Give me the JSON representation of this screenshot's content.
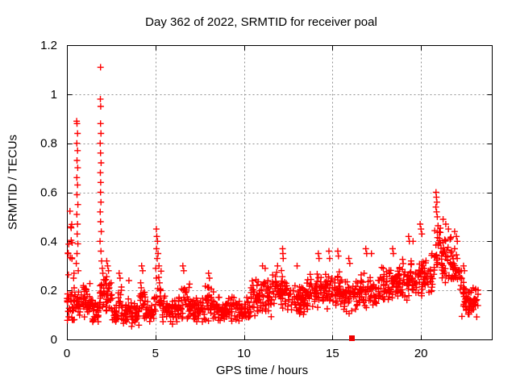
{
  "chart_data": {
    "type": "scatter",
    "title": "Day 362 of 2022, SRMTID for receiver poal",
    "xlabel": "GPS time / hours",
    "ylabel": "SRMTID / TECUs",
    "xlim": [
      0,
      24
    ],
    "ylim": [
      0,
      1.2
    ],
    "xticks": [
      0,
      5,
      10,
      15,
      20
    ],
    "xtick_labels": [
      "0",
      "5",
      "10",
      "15",
      "20"
    ],
    "yticks": [
      0,
      0.2,
      0.4,
      0.6,
      0.8,
      1,
      1.2
    ],
    "ytick_labels": [
      "0",
      "0.2",
      "0.4",
      "0.6",
      "0.8",
      "1",
      "1.2"
    ],
    "grid": "dashed at major ticks",
    "legend": "none",
    "colors": {
      "marker": "#ff0000",
      "flag_marker": "#ee0000",
      "frame": "#000000",
      "grid": "#909090",
      "text": "#000000",
      "background": "#ffffff"
    },
    "marker": "plus",
    "noise_seed": 1362,
    "series": [
      {
        "name": "SRMTID",
        "marker": "plus",
        "color": "#ff0000",
        "band_segments": [
          [
            0.0,
            0.3,
            0.14,
            0.07,
            22
          ],
          [
            0.05,
            0.3,
            0.38,
            0.17,
            14
          ],
          [
            0.3,
            0.8,
            0.15,
            0.08,
            30
          ],
          [
            0.8,
            1.4,
            0.16,
            0.08,
            40
          ],
          [
            1.4,
            1.78,
            0.11,
            0.05,
            26
          ],
          [
            1.82,
            2.05,
            0.2,
            0.09,
            14
          ],
          [
            2.05,
            2.55,
            0.18,
            0.09,
            34
          ],
          [
            2.55,
            2.9,
            0.11,
            0.05,
            24
          ],
          [
            2.9,
            3.15,
            0.15,
            0.08,
            16
          ],
          [
            3.15,
            3.45,
            0.1,
            0.05,
            20
          ],
          [
            3.45,
            3.65,
            0.14,
            0.07,
            12
          ],
          [
            3.65,
            4.1,
            0.1,
            0.05,
            28
          ],
          [
            4.1,
            4.45,
            0.16,
            0.09,
            20
          ],
          [
            4.45,
            4.92,
            0.11,
            0.05,
            28
          ],
          [
            4.92,
            5.35,
            0.19,
            0.1,
            22
          ],
          [
            5.35,
            6.3,
            0.12,
            0.06,
            55
          ],
          [
            6.3,
            6.95,
            0.16,
            0.08,
            40
          ],
          [
            6.95,
            7.8,
            0.12,
            0.06,
            50
          ],
          [
            7.8,
            8.35,
            0.15,
            0.08,
            32
          ],
          [
            8.35,
            10.35,
            0.12,
            0.06,
            115
          ],
          [
            10.35,
            11.55,
            0.17,
            0.08,
            75
          ],
          [
            11.55,
            12.45,
            0.2,
            0.09,
            58
          ],
          [
            12.45,
            13.6,
            0.17,
            0.08,
            72
          ],
          [
            13.6,
            15.45,
            0.2,
            0.09,
            112
          ],
          [
            15.45,
            16.55,
            0.18,
            0.08,
            66
          ],
          [
            16.55,
            17.55,
            0.2,
            0.09,
            62
          ],
          [
            17.55,
            18.75,
            0.22,
            0.09,
            72
          ],
          [
            18.75,
            19.85,
            0.24,
            0.1,
            66
          ],
          [
            19.85,
            20.75,
            0.26,
            0.1,
            56
          ],
          [
            20.75,
            21.15,
            0.37,
            0.12,
            26
          ],
          [
            21.15,
            21.7,
            0.32,
            0.11,
            40
          ],
          [
            21.7,
            22.3,
            0.28,
            0.1,
            40
          ],
          [
            22.3,
            22.65,
            0.17,
            0.08,
            24
          ],
          [
            22.65,
            23.25,
            0.16,
            0.07,
            42
          ]
        ],
        "peak_points": [
          [
            0.4,
            0.27
          ],
          [
            0.38,
            0.25
          ],
          [
            0.55,
            0.89
          ],
          [
            0.57,
            0.88
          ],
          [
            0.6,
            0.84
          ],
          [
            0.56,
            0.8
          ],
          [
            0.6,
            0.77
          ],
          [
            0.57,
            0.73
          ],
          [
            0.61,
            0.7
          ],
          [
            0.56,
            0.66
          ],
          [
            0.6,
            0.63
          ],
          [
            0.57,
            0.59
          ],
          [
            0.62,
            0.55
          ],
          [
            0.56,
            0.51
          ],
          [
            0.6,
            0.47
          ],
          [
            0.58,
            0.43
          ],
          [
            0.62,
            0.39
          ],
          [
            0.57,
            0.35
          ],
          [
            0.53,
            0.31
          ],
          [
            0.64,
            0.28
          ],
          [
            1.9,
            1.11
          ],
          [
            1.89,
            0.98
          ],
          [
            1.91,
            0.95
          ],
          [
            1.9,
            0.88
          ],
          [
            1.92,
            0.84
          ],
          [
            1.88,
            0.8
          ],
          [
            1.9,
            0.76
          ],
          [
            1.93,
            0.72
          ],
          [
            1.89,
            0.68
          ],
          [
            1.91,
            0.64
          ],
          [
            1.9,
            0.6
          ],
          [
            1.92,
            0.56
          ],
          [
            1.88,
            0.52
          ],
          [
            1.9,
            0.48
          ],
          [
            1.94,
            0.44
          ],
          [
            1.87,
            0.4
          ],
          [
            1.92,
            0.36
          ],
          [
            1.96,
            0.32
          ],
          [
            2.0,
            0.29
          ],
          [
            2.03,
            0.27
          ],
          [
            2.25,
            0.32
          ],
          [
            2.3,
            0.3
          ],
          [
            2.35,
            0.28
          ],
          [
            2.95,
            0.27
          ],
          [
            3.0,
            0.25
          ],
          [
            3.5,
            0.24
          ],
          [
            4.22,
            0.3
          ],
          [
            4.28,
            0.28
          ],
          [
            5.05,
            0.45
          ],
          [
            5.08,
            0.42
          ],
          [
            5.12,
            0.4
          ],
          [
            5.06,
            0.37
          ],
          [
            5.15,
            0.35
          ],
          [
            5.1,
            0.33
          ],
          [
            5.2,
            0.3
          ],
          [
            5.02,
            0.29
          ],
          [
            6.55,
            0.3
          ],
          [
            6.6,
            0.28
          ],
          [
            8.0,
            0.27
          ],
          [
            8.05,
            0.25
          ],
          [
            11.05,
            0.3
          ],
          [
            11.2,
            0.29
          ],
          [
            11.9,
            0.3
          ],
          [
            12.18,
            0.37
          ],
          [
            12.2,
            0.35
          ],
          [
            12.22,
            0.33
          ],
          [
            13.0,
            0.3
          ],
          [
            14.2,
            0.35
          ],
          [
            14.24,
            0.33
          ],
          [
            14.8,
            0.36
          ],
          [
            14.84,
            0.33
          ],
          [
            15.3,
            0.36
          ],
          [
            15.34,
            0.34
          ],
          [
            15.92,
            0.33
          ],
          [
            15.98,
            0.31
          ],
          [
            16.88,
            0.37
          ],
          [
            16.93,
            0.35
          ],
          [
            17.2,
            0.35
          ],
          [
            18.4,
            0.37
          ],
          [
            18.44,
            0.35
          ],
          [
            19.3,
            0.42
          ],
          [
            19.34,
            0.4
          ],
          [
            19.55,
            0.4
          ],
          [
            19.95,
            0.47
          ],
          [
            20.0,
            0.45
          ],
          [
            20.05,
            0.43
          ],
          [
            20.85,
            0.6
          ],
          [
            20.87,
            0.58
          ],
          [
            20.9,
            0.56
          ],
          [
            20.84,
            0.54
          ],
          [
            20.88,
            0.52
          ],
          [
            20.92,
            0.5
          ],
          [
            21.25,
            0.49
          ],
          [
            21.4,
            0.47
          ],
          [
            21.55,
            0.45
          ],
          [
            21.9,
            0.44
          ],
          [
            22.0,
            0.42
          ],
          [
            22.05,
            0.4
          ],
          [
            22.4,
            0.3
          ],
          [
            22.45,
            0.28
          ]
        ]
      },
      {
        "name": "flag",
        "marker": "filled-square",
        "color": "#ee0000",
        "points": [
          [
            16.1,
            0.005
          ]
        ]
      }
    ]
  }
}
